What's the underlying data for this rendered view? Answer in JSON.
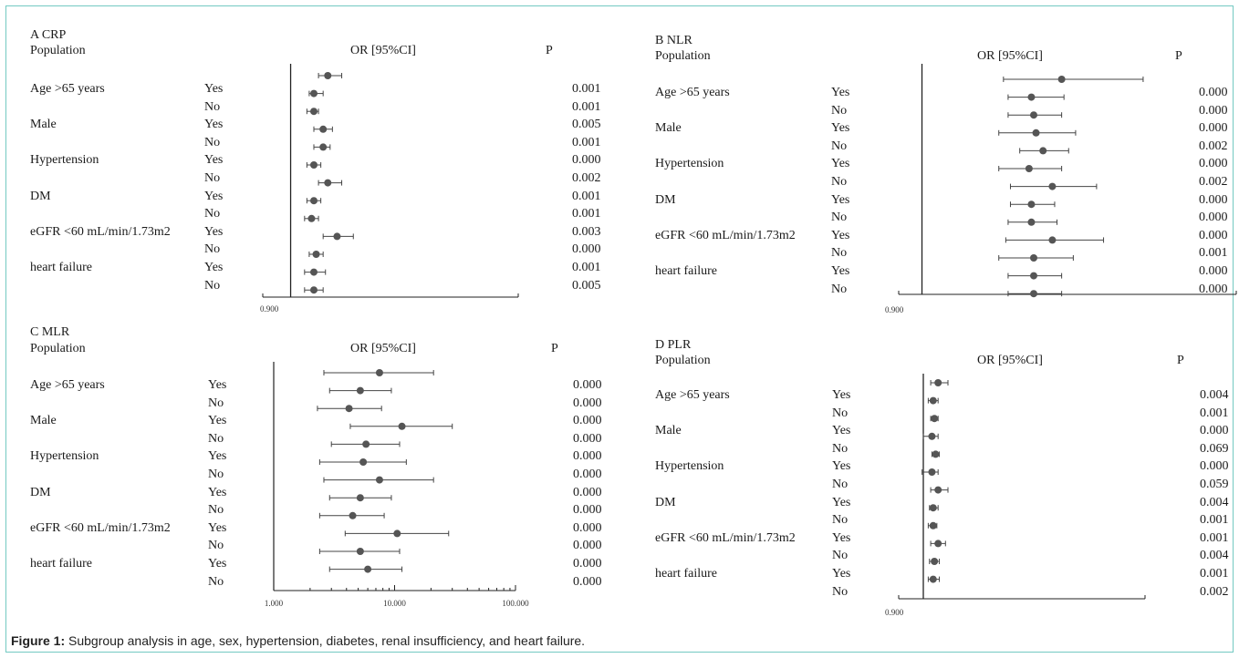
{
  "caption": {
    "label": "Figure 1:",
    "text": " Subgroup analysis in age, sex, hypertension, diabetes, renal insufficiency, and heart failure."
  },
  "chart_data": [
    {
      "type": "forest",
      "panel": "A CRP",
      "population_header": "Population",
      "effect_header": "OR [95%CI]",
      "p_header": "P",
      "xlim": [
        0.9,
        1.45
      ],
      "ref_line": 0.96,
      "tick_labels": [
        "0.900"
      ],
      "tick_values": [
        0.9
      ],
      "scale": "linear",
      "first_point": {
        "est": 1.04,
        "lo": 1.02,
        "hi": 1.07
      },
      "rows": [
        {
          "group": "Age >65 years",
          "level": "Yes",
          "est": 1.01,
          "lo": 1.0,
          "hi": 1.03,
          "p": "0.001"
        },
        {
          "group": "",
          "level": "No",
          "est": 1.01,
          "lo": 0.995,
          "hi": 1.02,
          "p": "0.001"
        },
        {
          "group": "Male",
          "level": "Yes",
          "est": 1.03,
          "lo": 1.01,
          "hi": 1.05,
          "p": "0.005"
        },
        {
          "group": "",
          "level": "No",
          "est": 1.03,
          "lo": 1.01,
          "hi": 1.045,
          "p": "0.001"
        },
        {
          "group": "Hypertension",
          "level": "Yes",
          "est": 1.01,
          "lo": 0.995,
          "hi": 1.025,
          "p": "0.000"
        },
        {
          "group": "",
          "level": "No",
          "est": 1.04,
          "lo": 1.02,
          "hi": 1.07,
          "p": "0.002"
        },
        {
          "group": "DM",
          "level": "Yes",
          "est": 1.01,
          "lo": 0.995,
          "hi": 1.025,
          "p": "0.001"
        },
        {
          "group": "",
          "level": "No",
          "est": 1.005,
          "lo": 0.99,
          "hi": 1.02,
          "p": "0.001"
        },
        {
          "group": "eGFR <60 mL/min/1.73m2",
          "level": "Yes",
          "est": 1.06,
          "lo": 1.03,
          "hi": 1.095,
          "p": "0.003"
        },
        {
          "group": "",
          "level": "No",
          "est": 1.015,
          "lo": 1.0,
          "hi": 1.03,
          "p": "0.000"
        },
        {
          "group": "heart failure",
          "level": "Yes",
          "est": 1.01,
          "lo": 0.99,
          "hi": 1.035,
          "p": "0.001"
        },
        {
          "group": "",
          "level": "No",
          "est": 1.01,
          "lo": 0.99,
          "hi": 1.03,
          "p": "0.005"
        }
      ]
    },
    {
      "type": "forest",
      "panel": "B NLR",
      "population_header": "Population",
      "effect_header": "OR [95%CI]",
      "p_header": "P",
      "xlim": [
        0.9,
        2.35
      ],
      "ref_line": 1.0,
      "tick_labels": [
        "0.900"
      ],
      "tick_values": [
        0.9
      ],
      "scale": "linear",
      "first_point": {
        "est": 1.6,
        "lo": 1.35,
        "hi": 1.95
      },
      "rows": [
        {
          "group": "Age >65 years",
          "level": "Yes",
          "est": 1.47,
          "lo": 1.37,
          "hi": 1.61,
          "p": "0.000"
        },
        {
          "group": "",
          "level": "No",
          "est": 1.48,
          "lo": 1.37,
          "hi": 1.6,
          "p": "0.000"
        },
        {
          "group": "Male",
          "level": "Yes",
          "est": 1.49,
          "lo": 1.33,
          "hi": 1.66,
          "p": "0.000"
        },
        {
          "group": "",
          "level": "No",
          "est": 1.52,
          "lo": 1.42,
          "hi": 1.63,
          "p": "0.002"
        },
        {
          "group": "Hypertension",
          "level": "Yes",
          "est": 1.46,
          "lo": 1.33,
          "hi": 1.6,
          "p": "0.000"
        },
        {
          "group": "",
          "level": "No",
          "est": 1.56,
          "lo": 1.38,
          "hi": 1.75,
          "p": "0.002"
        },
        {
          "group": "DM",
          "level": "Yes",
          "est": 1.47,
          "lo": 1.38,
          "hi": 1.57,
          "p": "0.000"
        },
        {
          "group": "",
          "level": "No",
          "est": 1.47,
          "lo": 1.37,
          "hi": 1.58,
          "p": "0.000"
        },
        {
          "group": "eGFR <60 mL/min/1.73m2",
          "level": "Yes",
          "est": 1.56,
          "lo": 1.36,
          "hi": 1.78,
          "p": "0.000"
        },
        {
          "group": "",
          "level": "No",
          "est": 1.48,
          "lo": 1.33,
          "hi": 1.65,
          "p": "0.001"
        },
        {
          "group": "heart failure",
          "level": "Yes",
          "est": 1.48,
          "lo": 1.37,
          "hi": 1.6,
          "p": "0.000"
        },
        {
          "group": "",
          "level": "No",
          "est": 1.48,
          "lo": 1.37,
          "hi": 1.6,
          "p": "0.000"
        }
      ]
    },
    {
      "type": "forest",
      "panel": "C MLR",
      "population_header": "Population",
      "effect_header": "OR [95%CI]",
      "p_header": "P",
      "xlim": [
        1,
        100
      ],
      "ref_line": null,
      "tick_labels": [
        "1.000",
        "10.000",
        "100.000"
      ],
      "tick_values": [
        1,
        10,
        100
      ],
      "scale": "log",
      "first_point": {
        "est": 7.5,
        "lo": 2.6,
        "hi": 21
      },
      "rows": [
        {
          "group": "Age >65 years",
          "level": "Yes",
          "est": 5.2,
          "lo": 2.9,
          "hi": 9.4,
          "p": "0.000"
        },
        {
          "group": "",
          "level": "No",
          "est": 4.2,
          "lo": 2.3,
          "hi": 7.8,
          "p": "0.000"
        },
        {
          "group": "Male",
          "level": "Yes",
          "est": 11.5,
          "lo": 4.3,
          "hi": 30,
          "p": "0.000"
        },
        {
          "group": "",
          "level": "No",
          "est": 5.8,
          "lo": 3.0,
          "hi": 11,
          "p": "0.000"
        },
        {
          "group": "Hypertension",
          "level": "Yes",
          "est": 5.5,
          "lo": 2.4,
          "hi": 12.5,
          "p": "0.000"
        },
        {
          "group": "",
          "level": "No",
          "est": 7.5,
          "lo": 2.6,
          "hi": 21,
          "p": "0.000"
        },
        {
          "group": "DM",
          "level": "Yes",
          "est": 5.2,
          "lo": 2.9,
          "hi": 9.4,
          "p": "0.000"
        },
        {
          "group": "",
          "level": "No",
          "est": 4.5,
          "lo": 2.4,
          "hi": 8.2,
          "p": "0.000"
        },
        {
          "group": "eGFR <60 mL/min/1.73m2",
          "level": "Yes",
          "est": 10.5,
          "lo": 3.9,
          "hi": 28,
          "p": "0.000"
        },
        {
          "group": "",
          "level": "No",
          "est": 5.2,
          "lo": 2.4,
          "hi": 11,
          "p": "0.000"
        },
        {
          "group": "heart failure",
          "level": "Yes",
          "est": 6.0,
          "lo": 2.9,
          "hi": 11.5,
          "p": "0.000"
        },
        {
          "group": "",
          "level": "No",
          "est": null,
          "lo": null,
          "hi": null,
          "p": "0.000"
        }
      ]
    },
    {
      "type": "forest",
      "panel": "D PLR",
      "population_header": "Population",
      "effect_header": "OR [95%CI]",
      "p_header": "P",
      "xlim": [
        0.9,
        1.9
      ],
      "ref_line": 1.0,
      "tick_labels": [
        "0.900"
      ],
      "tick_values": [
        0.9
      ],
      "scale": "linear",
      "first_point": {
        "est": 1.06,
        "lo": 1.03,
        "hi": 1.1
      },
      "rows": [
        {
          "group": "Age >65 years",
          "level": "Yes",
          "est": 1.04,
          "lo": 1.02,
          "hi": 1.06,
          "p": "0.004"
        },
        {
          "group": "",
          "level": "No",
          "est": 1.045,
          "lo": 1.03,
          "hi": 1.06,
          "p": "0.001"
        },
        {
          "group": "Male",
          "level": "Yes",
          "est": 1.035,
          "lo": 1.0,
          "hi": 1.06,
          "p": "0.000"
        },
        {
          "group": "",
          "level": "No",
          "est": 1.05,
          "lo": 1.035,
          "hi": 1.065,
          "p": "0.069"
        },
        {
          "group": "Hypertension",
          "level": "Yes",
          "est": 1.035,
          "lo": 0.995,
          "hi": 1.06,
          "p": "0.000"
        },
        {
          "group": "",
          "level": "No",
          "est": 1.06,
          "lo": 1.03,
          "hi": 1.1,
          "p": "0.059"
        },
        {
          "group": "DM",
          "level": "Yes",
          "est": 1.04,
          "lo": 1.025,
          "hi": 1.06,
          "p": "0.004"
        },
        {
          "group": "",
          "level": "No",
          "est": 1.04,
          "lo": 1.02,
          "hi": 1.055,
          "p": "0.001"
        },
        {
          "group": "eGFR <60 mL/min/1.73m2",
          "level": "Yes",
          "est": 1.06,
          "lo": 1.03,
          "hi": 1.09,
          "p": "0.001"
        },
        {
          "group": "",
          "level": "No",
          "est": 1.045,
          "lo": 1.025,
          "hi": 1.065,
          "p": "0.004"
        },
        {
          "group": "heart failure",
          "level": "Yes",
          "est": 1.04,
          "lo": 1.02,
          "hi": 1.065,
          "p": "0.001"
        },
        {
          "group": "",
          "level": "No",
          "est": null,
          "lo": null,
          "hi": null,
          "p": "0.002"
        }
      ]
    }
  ]
}
